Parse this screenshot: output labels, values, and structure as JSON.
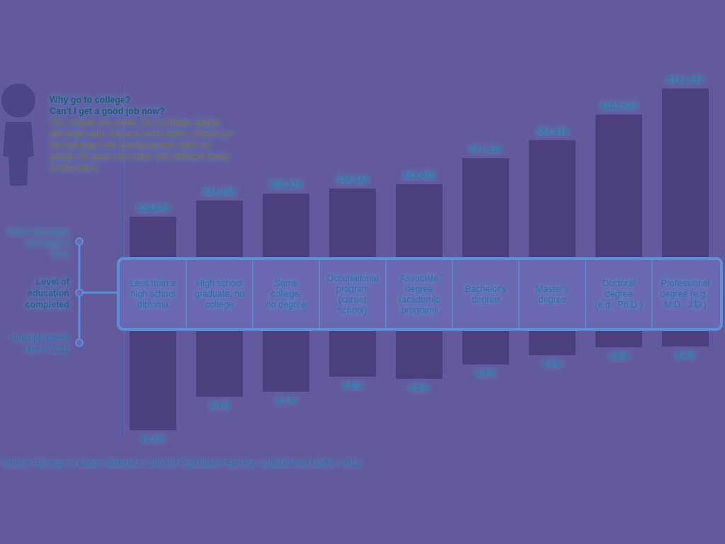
{
  "chart_data": {
    "type": "bar",
    "title": "Why go to college?",
    "subtitle": "Can't I get a good job now?",
    "annotations": [
      "Yes, maybe you could, but a college degree\nwill make your chances even better. Check out\nthe earnings and unemployment rates for\npeople 25 years and older with different levels\nof education:",
      "Source: Bureau of Labor Statistics, Current Population Survey, unpublished tables, 2012."
    ],
    "x_label": "Level of\neducation\ncompleted",
    "categories": [
      "Less than a\nhigh school\ndiploma",
      "High school\ngraduate, no\ncollege",
      "Some\ncollege,\nno degree",
      "Occupational\nprogram\n(career\nschool)",
      "Associate\ndegree\n(academic\nprogram)",
      "Bachelor's\ndegree",
      "Master's\ndegree",
      "Doctoral\ndegree\n(e.g., Ph.D.)",
      "Professional\ndegree (e.g.,\nM.D., J.D.)"
    ],
    "series": [
      {
        "name": "Mean (average)\nearnings in\n2011",
        "color": "#4c3f7e",
        "values": [
          29848,
          41288,
          46228,
          49920,
          52988,
          71552,
          84448,
          102648,
          121212
        ],
        "value_labels": [
          "$29,848",
          "$41,288",
          "$46,228",
          "$49,920",
          "$52,988",
          "$71,552",
          "$84,448",
          "$102,648",
          "$121,212"
        ]
      },
      {
        "name": "Unemployment\nrate in 2011",
        "color": "#4c3f7e",
        "axis": "y2",
        "values": [
          14.1,
          9.4,
          8.7,
          6.6,
          6.9,
          4.9,
          3.6,
          2.5,
          2.4
        ],
        "value_labels": [
          "14.1%",
          "9.4%",
          "8.7%",
          "6.6%",
          "6.9%",
          "4.9%",
          "3.6%",
          "2.5%",
          "2.4%"
        ]
      }
    ],
    "ylim": [
      0,
      125000
    ],
    "y2lim": [
      0,
      15
    ],
    "data_labels": true,
    "tick_labels": false
  }
}
